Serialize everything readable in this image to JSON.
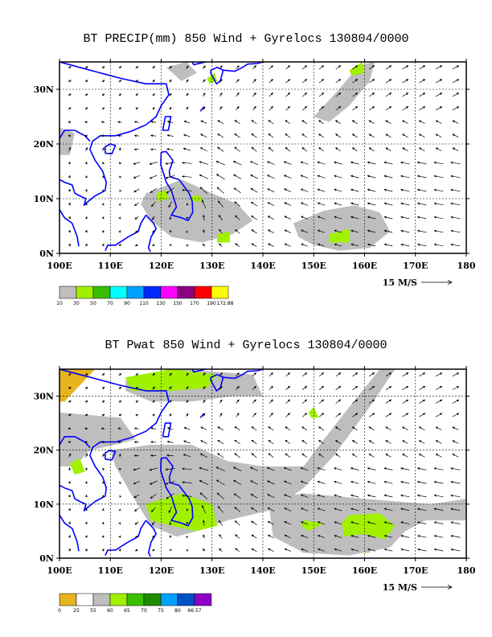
{
  "panels": [
    {
      "title": "BT PRECIP(mm) 850 Wind + Gyrelocs 130804/0000",
      "x_ticks": [
        "100E",
        "110E",
        "120E",
        "130E",
        "140E",
        "150E",
        "160E",
        "170E",
        "180"
      ],
      "y_ticks": [
        "0N",
        "10N",
        "20N",
        "30N"
      ],
      "ref_vector": "15 M/S",
      "colorbar_labels": [
        "10",
        "30",
        "50",
        "70",
        "90",
        "110",
        "130",
        "150",
        "170",
        "190",
        "172.88"
      ],
      "colorbar_colors": [
        "#bebebe",
        "#a0f000",
        "#3cbe00",
        "#00ffff",
        "#00a0ff",
        "#0028ff",
        "#ff00ff",
        "#8c0082",
        "#ff0000",
        "#ffff00"
      ]
    },
    {
      "title": "BT Pwat 850 Wind + Gyrelocs 130804/0000",
      "x_ticks": [
        "100E",
        "110E",
        "120E",
        "130E",
        "140E",
        "150E",
        "160E",
        "170E",
        "180"
      ],
      "y_ticks": [
        "0N",
        "10N",
        "20N",
        "30N"
      ],
      "ref_vector": "15 M/S",
      "colorbar_labels": [
        "0",
        "25",
        "55",
        "60",
        "65",
        "70",
        "75",
        "80",
        "66.57"
      ],
      "colorbar_colors": [
        "#e6b41e",
        "#ffffff",
        "#bebebe",
        "#a0f000",
        "#3cbe00",
        "#1e8c00",
        "#00a0ff",
        "#0050c8",
        "#8c00c8"
      ]
    }
  ]
}
